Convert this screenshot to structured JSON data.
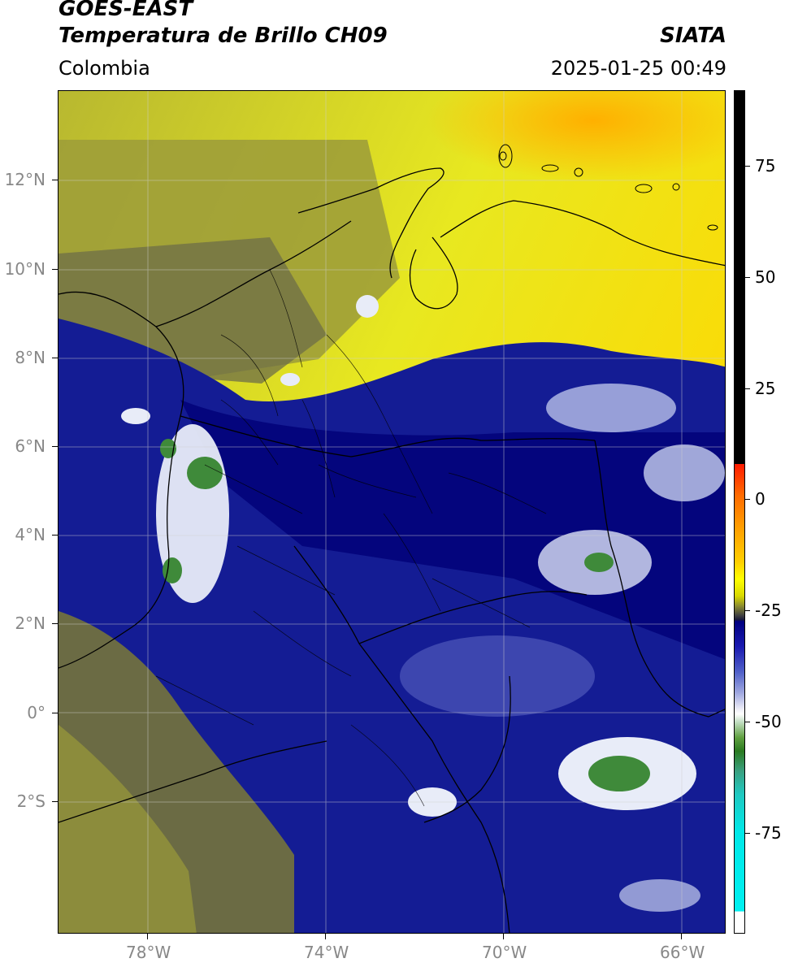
{
  "header": {
    "satellite": "GOES-EAST",
    "product": "Temperatura de Brillo CH09",
    "region": "Colombia",
    "agency": "SIATA",
    "datetime": "2025-01-25 00:49"
  },
  "axes": {
    "lat_labels": [
      "12°N",
      "10°N",
      "8°N",
      "6°N",
      "4°N",
      "2°N",
      "0°",
      "2°S"
    ],
    "lon_labels": [
      "78°W",
      "74°W",
      "70°W",
      "66°W"
    ]
  },
  "colorbar": {
    "unit_hint": "",
    "tick_labels": [
      "75",
      "50",
      "25",
      "0",
      "-25",
      "-50",
      "-75"
    ],
    "colors": {
      "warm_top": "#000000",
      "hot": "#ff1a00",
      "orange": "#ffa000",
      "yellow": "#ffff00",
      "olive": "#8a8a30",
      "navy": "#000080",
      "light_blue": "#a0a8e0",
      "white": "#ffffff",
      "green": "#2a7a20",
      "cyan": "#00f0f0"
    }
  },
  "map": {
    "extent_lon": [
      -80,
      -65
    ],
    "extent_lat": [
      -5,
      14
    ],
    "gridlines": true,
    "background_colors": {
      "yellow": "#f2f000",
      "olive": "#8f8f3a",
      "dark_olive": "#5a5a40",
      "navy": "#101890",
      "deep_navy": "#000070",
      "cloud_white": "#e8ecf8",
      "cloud_green": "#3f8a3a"
    }
  }
}
